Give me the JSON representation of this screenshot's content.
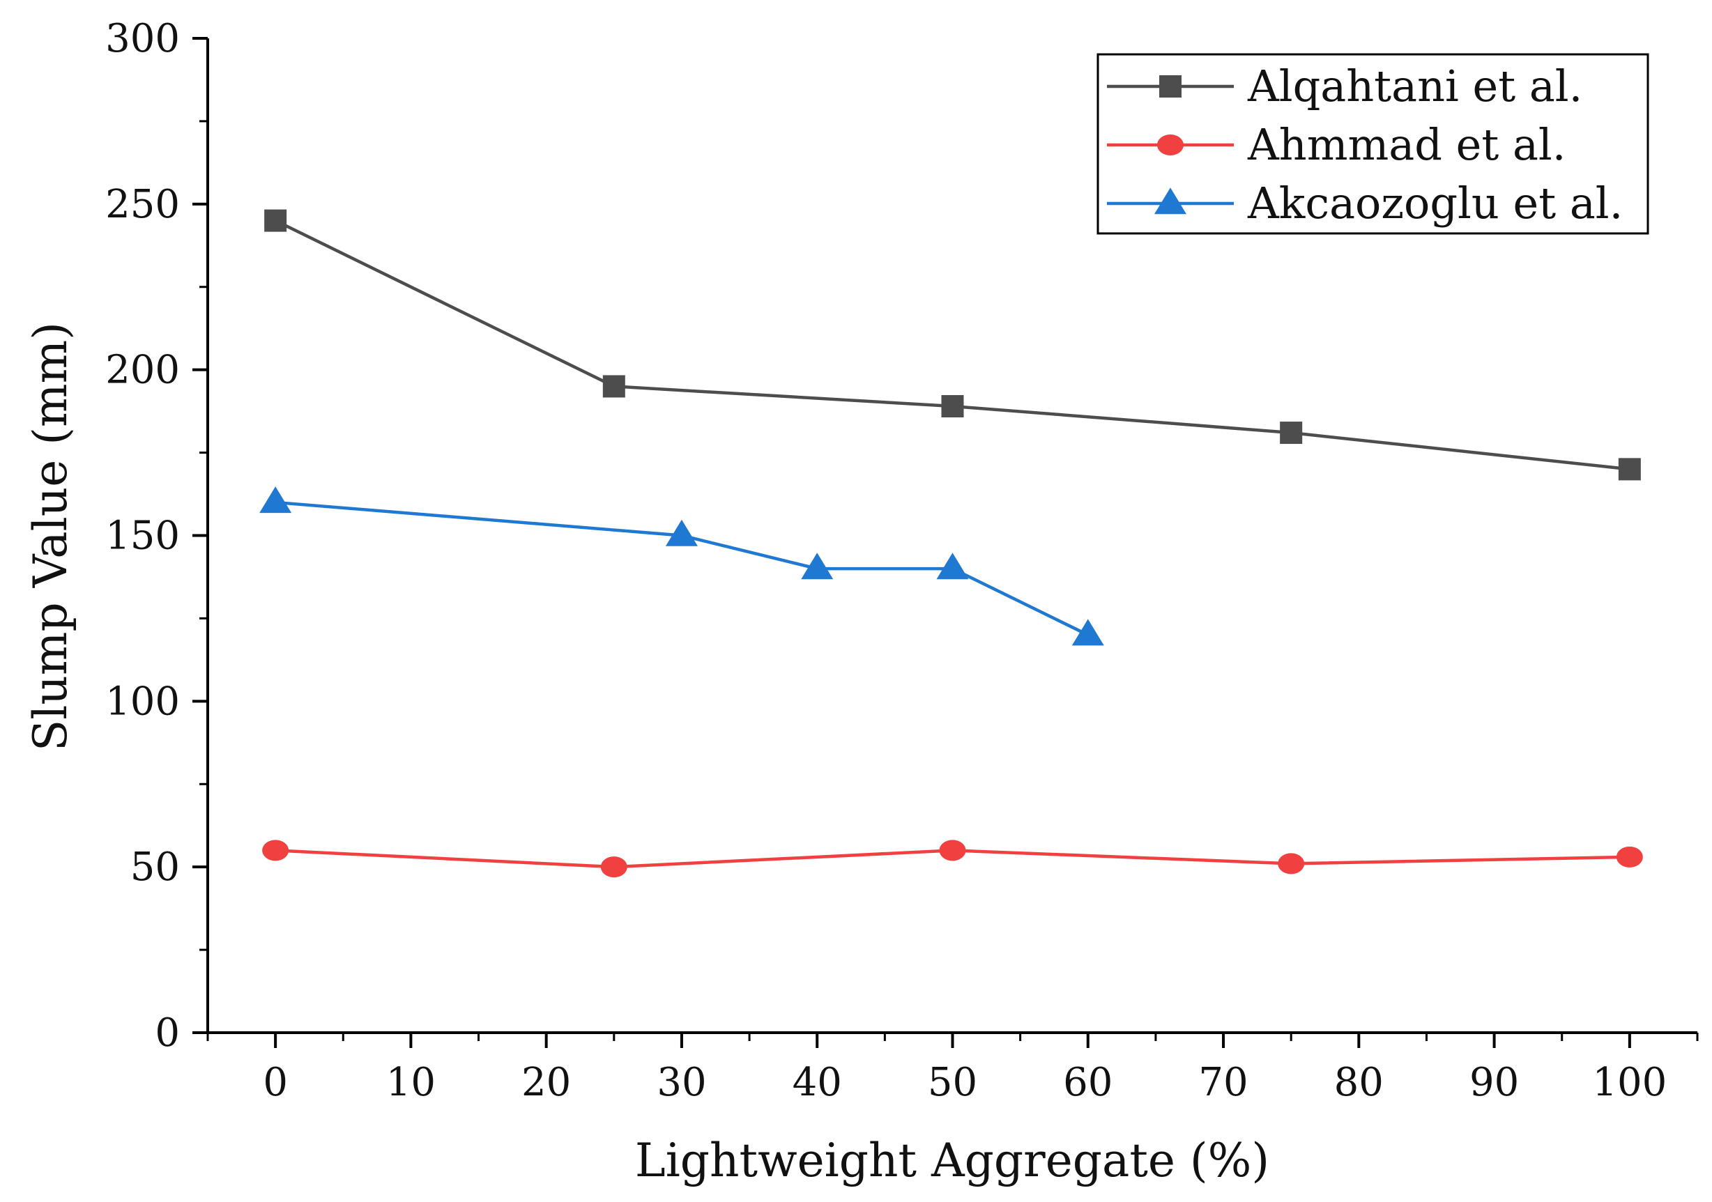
{
  "chart_data": {
    "type": "line",
    "title": "",
    "xlabel": "Lightweight Aggregate (%)",
    "ylabel": "Slump Value (mm)",
    "xlim": [
      -5,
      105
    ],
    "ylim": [
      0,
      300
    ],
    "xticks": [
      0,
      10,
      20,
      30,
      40,
      50,
      60,
      70,
      80,
      90,
      100
    ],
    "yticks": [
      0,
      50,
      100,
      150,
      200,
      250,
      300
    ],
    "grid": false,
    "legend_position": "top-right",
    "series": [
      {
        "name": "Alqahtani et al.",
        "color": "#4d4d4d",
        "marker": "square",
        "x": [
          0,
          25,
          50,
          75,
          100
        ],
        "values": [
          245,
          195,
          189,
          181,
          170
        ]
      },
      {
        "name": "Ahmmad et al.",
        "color": "#f04040",
        "marker": "circle",
        "x": [
          0,
          25,
          50,
          75,
          100
        ],
        "values": [
          55,
          50,
          55,
          51,
          53
        ]
      },
      {
        "name": "Akcaozoglu et al.",
        "color": "#1f78d1",
        "marker": "triangle",
        "x": [
          0,
          30,
          40,
          50,
          60
        ],
        "values": [
          160,
          150,
          140,
          140,
          120
        ]
      }
    ]
  }
}
